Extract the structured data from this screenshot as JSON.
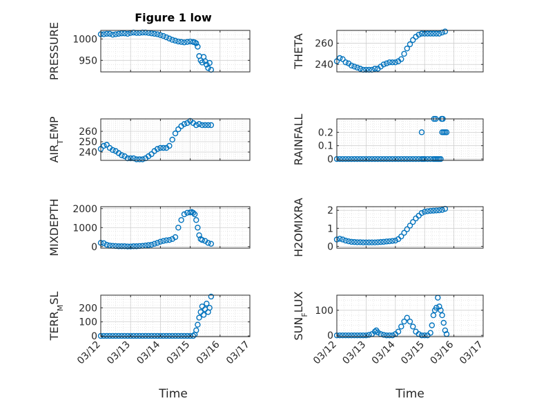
{
  "figure": {
    "title": "Figure 1 low",
    "xlabel": "Time",
    "marker_color": "#0072BD",
    "axis_color": "#262626",
    "grid_color": "#cfcfcf"
  },
  "x_tick_labels": [
    "03/12",
    "03/13",
    "03/14",
    "03/15",
    "03/16",
    "03/17"
  ],
  "chart_data": [
    {
      "type": "scatter",
      "marker": "open-circle",
      "grid": true,
      "ylabel": "PRESSURE",
      "ylim": [
        923,
        1020
      ],
      "yticks": [
        950,
        1000
      ],
      "xlim": [
        0,
        5
      ],
      "x_units": "days since 03/12",
      "x": [
        0,
        0.1,
        0.2,
        0.3,
        0.4,
        0.5,
        0.6,
        0.7,
        0.8,
        0.9,
        1.0,
        1.1,
        1.2,
        1.3,
        1.4,
        1.5,
        1.6,
        1.7,
        1.8,
        1.9,
        2.0,
        2.1,
        2.2,
        2.3,
        2.4,
        2.5,
        2.6,
        2.7,
        2.8,
        2.9,
        3.0,
        3.1,
        3.15,
        3.2,
        3.25,
        3.3,
        3.35,
        3.4,
        3.45,
        3.5,
        3.55,
        3.6,
        3.65,
        3.7
      ],
      "y": [
        1011,
        1011,
        1012,
        1012,
        1010,
        1011,
        1012,
        1013,
        1013,
        1012,
        1014,
        1015,
        1014,
        1014,
        1015,
        1015,
        1014,
        1013,
        1012,
        1011,
        1009,
        1007,
        1004,
        1001,
        998,
        996,
        994,
        993,
        992,
        993,
        994,
        993,
        992,
        990,
        982,
        960,
        950,
        945,
        958,
        948,
        940,
        932,
        944,
        928
      ]
    },
    {
      "type": "scatter",
      "marker": "open-circle",
      "grid": true,
      "ylabel": "THETA",
      "ylim": [
        233,
        272
      ],
      "yticks": [
        240,
        260
      ],
      "xlim": [
        0,
        5
      ],
      "x": [
        0,
        0.1,
        0.2,
        0.3,
        0.4,
        0.5,
        0.6,
        0.7,
        0.8,
        0.9,
        1.0,
        1.1,
        1.2,
        1.3,
        1.4,
        1.5,
        1.6,
        1.7,
        1.8,
        1.9,
        2.0,
        2.1,
        2.2,
        2.3,
        2.4,
        2.5,
        2.6,
        2.7,
        2.8,
        2.9,
        3.0,
        3.1,
        3.2,
        3.3,
        3.4,
        3.5,
        3.6,
        3.7
      ],
      "y": [
        243,
        246,
        245,
        242,
        241,
        239,
        238,
        237,
        236,
        235,
        235,
        235,
        235,
        236,
        236,
        238,
        240,
        241,
        242,
        242,
        242,
        243,
        245,
        250,
        255,
        259,
        263,
        266,
        268,
        269,
        269,
        269,
        269,
        269,
        269,
        269,
        270,
        271
      ]
    },
    {
      "type": "scatter",
      "marker": "open-circle",
      "grid": true,
      "ylabel": "AIR_TEMP",
      "ylim": [
        232,
        272
      ],
      "yticks": [
        240,
        250,
        260
      ],
      "xlim": [
        0,
        5
      ],
      "x": [
        0,
        0.1,
        0.2,
        0.3,
        0.4,
        0.5,
        0.6,
        0.7,
        0.8,
        0.9,
        1.0,
        1.1,
        1.2,
        1.3,
        1.4,
        1.5,
        1.6,
        1.7,
        1.8,
        1.9,
        2.0,
        2.1,
        2.2,
        2.3,
        2.4,
        2.5,
        2.6,
        2.7,
        2.8,
        2.9,
        3.0,
        3.1,
        3.2,
        3.3,
        3.4,
        3.5,
        3.6,
        3.7
      ],
      "y": [
        243,
        246,
        247,
        244,
        242,
        241,
        239,
        237,
        236,
        234,
        234,
        234,
        233,
        233,
        233,
        234,
        236,
        238,
        241,
        243,
        244,
        244,
        244,
        246,
        252,
        258,
        262,
        265,
        267,
        268,
        270,
        268,
        266,
        267,
        266,
        266,
        266,
        266
      ]
    },
    {
      "type": "scatter",
      "marker": "open-circle",
      "grid": true,
      "ylabel": "RAINFALL",
      "ylim": [
        -0.01,
        0.3
      ],
      "yticks": [
        0,
        0.1,
        0.2
      ],
      "xlim": [
        0,
        5
      ],
      "x": [
        0,
        0.1,
        0.2,
        0.3,
        0.4,
        0.5,
        0.6,
        0.7,
        0.8,
        0.9,
        1.0,
        1.1,
        1.2,
        1.3,
        1.4,
        1.5,
        1.6,
        1.7,
        1.8,
        1.9,
        2.0,
        2.1,
        2.2,
        2.3,
        2.4,
        2.5,
        2.6,
        2.7,
        2.8,
        2.9,
        2.95,
        3.0,
        3.1,
        3.2,
        3.3,
        3.35,
        3.4,
        3.45,
        3.5,
        3.55,
        3.6,
        3.65,
        3.7,
        3.75,
        2.9,
        3.32,
        3.38,
        3.58,
        3.62
      ],
      "y": [
        0,
        0,
        0,
        0,
        0,
        0,
        0,
        0,
        0,
        0,
        0,
        0,
        0,
        0,
        0,
        0,
        0,
        0,
        0,
        0,
        0,
        0,
        0,
        0,
        0,
        0,
        0,
        0,
        0,
        0,
        0,
        0,
        0,
        0,
        0,
        0,
        0,
        0,
        0,
        0,
        0.2,
        0.2,
        0.2,
        0.2,
        0.2,
        0.3,
        0.3,
        0.3,
        0.3
      ]
    },
    {
      "type": "scatter",
      "marker": "open-circle",
      "grid": true,
      "ylabel": "MIXDEPTH",
      "ylim": [
        -80,
        2100
      ],
      "yticks": [
        0,
        1000,
        2000
      ],
      "xlim": [
        0,
        5
      ],
      "x": [
        0,
        0.1,
        0.2,
        0.3,
        0.4,
        0.5,
        0.6,
        0.7,
        0.8,
        0.9,
        1.0,
        1.1,
        1.2,
        1.3,
        1.4,
        1.5,
        1.6,
        1.7,
        1.8,
        1.9,
        2.0,
        2.1,
        2.2,
        2.3,
        2.4,
        2.5,
        2.6,
        2.7,
        2.8,
        2.9,
        3.0,
        3.05,
        3.1,
        3.15,
        3.2,
        3.25,
        3.3,
        3.35,
        3.4,
        3.5,
        3.6,
        3.7
      ],
      "y": [
        200,
        180,
        100,
        60,
        40,
        30,
        20,
        20,
        20,
        10,
        10,
        20,
        20,
        30,
        40,
        60,
        80,
        100,
        150,
        200,
        260,
        300,
        330,
        350,
        400,
        500,
        1000,
        1400,
        1700,
        1780,
        1800,
        1820,
        1780,
        1700,
        1400,
        1000,
        600,
        400,
        350,
        300,
        200,
        150
      ]
    },
    {
      "type": "scatter",
      "marker": "open-circle",
      "grid": true,
      "ylabel": "H2OMIXRA",
      "ylim": [
        -0.1,
        2.2
      ],
      "yticks": [
        0,
        1,
        2
      ],
      "xlim": [
        0,
        5
      ],
      "x": [
        0,
        0.1,
        0.2,
        0.3,
        0.4,
        0.5,
        0.6,
        0.7,
        0.8,
        0.9,
        1.0,
        1.1,
        1.2,
        1.3,
        1.4,
        1.5,
        1.6,
        1.7,
        1.8,
        1.9,
        2.0,
        2.1,
        2.2,
        2.3,
        2.4,
        2.5,
        2.6,
        2.7,
        2.8,
        2.9,
        3.0,
        3.1,
        3.2,
        3.3,
        3.4,
        3.5,
        3.6,
        3.7
      ],
      "y": [
        0.38,
        0.42,
        0.38,
        0.32,
        0.28,
        0.25,
        0.24,
        0.23,
        0.23,
        0.22,
        0.22,
        0.22,
        0.22,
        0.22,
        0.23,
        0.24,
        0.25,
        0.27,
        0.28,
        0.3,
        0.32,
        0.4,
        0.55,
        0.75,
        0.95,
        1.15,
        1.35,
        1.55,
        1.7,
        1.85,
        1.92,
        1.95,
        1.97,
        1.98,
        1.99,
        2.0,
        2.02,
        2.08
      ]
    },
    {
      "type": "scatter",
      "marker": "open-circle",
      "grid": true,
      "ylabel": "TERR_MSL",
      "ylim": [
        -5,
        290
      ],
      "yticks": [
        0,
        100,
        200
      ],
      "xlim": [
        0,
        5
      ],
      "x": [
        0,
        0.1,
        0.2,
        0.3,
        0.4,
        0.5,
        0.6,
        0.7,
        0.8,
        0.9,
        1.0,
        1.1,
        1.2,
        1.3,
        1.4,
        1.5,
        1.6,
        1.7,
        1.8,
        1.9,
        2.0,
        2.1,
        2.2,
        2.3,
        2.4,
        2.5,
        2.6,
        2.7,
        2.8,
        2.9,
        3.0,
        3.1,
        3.15,
        3.2,
        3.25,
        3.3,
        3.35,
        3.4,
        3.45,
        3.5,
        3.55,
        3.6,
        3.65,
        3.7
      ],
      "y": [
        0,
        0,
        0,
        0,
        0,
        0,
        0,
        0,
        0,
        0,
        0,
        0,
        0,
        0,
        0,
        0,
        0,
        0,
        0,
        0,
        0,
        0,
        0,
        0,
        0,
        0,
        0,
        0,
        0,
        0,
        0,
        0,
        10,
        40,
        80,
        130,
        170,
        210,
        150,
        190,
        230,
        170,
        200,
        280
      ]
    },
    {
      "type": "scatter",
      "marker": "open-circle",
      "grid": true,
      "ylabel": "SUN_FLUX",
      "ylim": [
        -5,
        160
      ],
      "yticks": [
        0,
        100
      ],
      "xlim": [
        0,
        5
      ],
      "x": [
        0,
        0.1,
        0.2,
        0.3,
        0.4,
        0.5,
        0.6,
        0.7,
        0.8,
        0.9,
        1.0,
        1.1,
        1.2,
        1.3,
        1.35,
        1.4,
        1.5,
        1.6,
        1.7,
        1.8,
        1.9,
        2.0,
        2.1,
        2.2,
        2.3,
        2.4,
        2.5,
        2.6,
        2.7,
        2.8,
        2.9,
        3.0,
        3.1,
        3.2,
        3.25,
        3.3,
        3.35,
        3.4,
        3.45,
        3.5,
        3.55,
        3.6,
        3.65,
        3.7,
        3.75
      ],
      "y": [
        0,
        0,
        0,
        0,
        0,
        0,
        0,
        0,
        0,
        0,
        0,
        2,
        5,
        15,
        20,
        12,
        5,
        2,
        0,
        0,
        0,
        5,
        15,
        35,
        55,
        70,
        55,
        35,
        15,
        5,
        0,
        0,
        0,
        10,
        40,
        80,
        100,
        110,
        150,
        115,
        100,
        80,
        50,
        20,
        5
      ]
    }
  ]
}
